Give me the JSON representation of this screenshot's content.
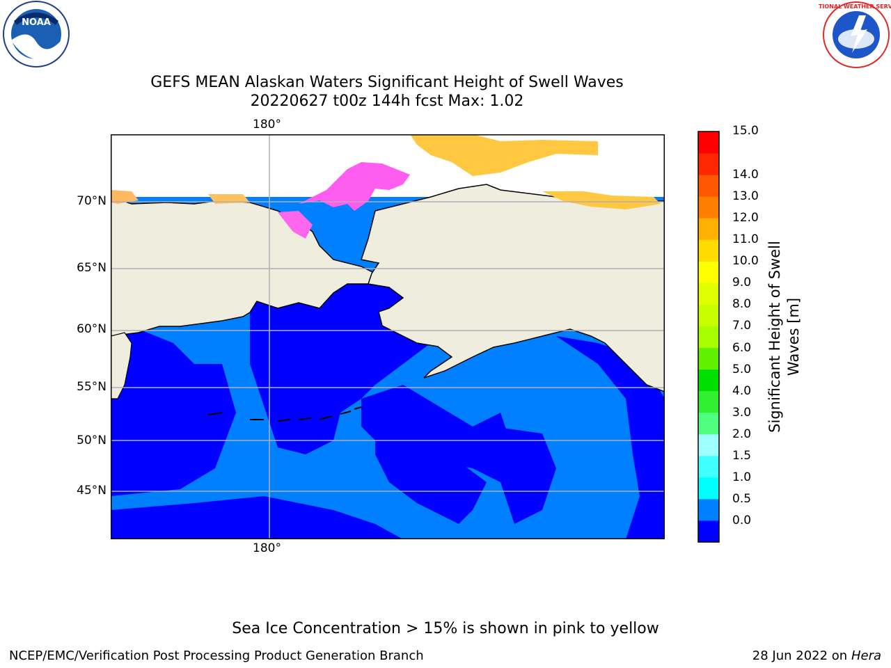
{
  "header": {
    "title_line1": "GEFS MEAN Alaskan Waters Significant Height of Swell Waves",
    "title_line2": "20220627 t00z 144h fcst   Max: 1.02"
  },
  "logos": {
    "left": "NOAA",
    "right": "NATIONAL WEATHER SERVICE"
  },
  "map": {
    "lon_label": "180°",
    "lat_labels": [
      "70°N",
      "65°N",
      "60°N",
      "55°N",
      "50°N",
      "45°N"
    ],
    "colors": {
      "land": "#efedde",
      "ice_pink": "#ff5cf0",
      "ice_yellow": "#ffc840",
      "swell_low": "#0000ff",
      "swell_mid": "#0080ff",
      "grid": "#b0b0b0"
    }
  },
  "colorbar": {
    "title": "Significant Height of Swell Waves [m]",
    "ticks": [
      "15.0",
      "14.0",
      "13.0",
      "12.0",
      "11.0",
      "10.0",
      "9.0",
      "8.0",
      "7.0",
      "6.0",
      "5.0",
      "4.0",
      "3.0",
      "2.0",
      "1.5",
      "1.0",
      "0.5",
      "0.0"
    ],
    "colors": [
      "#0000ff",
      "#0080ff",
      "#00ffff",
      "#40ffff",
      "#a0ffff",
      "#50ff80",
      "#30f030",
      "#00e000",
      "#60f000",
      "#a8ff00",
      "#c8ff00",
      "#e0ff00",
      "#ffff00",
      "#ffdc00",
      "#ffb000",
      "#ff8000",
      "#ff5800",
      "#ff2800",
      "#ff0000"
    ]
  },
  "footer": {
    "note": "Sea Ice Concentration > 15% is shown in pink to yellow",
    "credit": "NCEP/EMC/Verification Post Processing Product Generation Branch",
    "date": "28 Jun 2022 on",
    "machine": "Hera"
  }
}
